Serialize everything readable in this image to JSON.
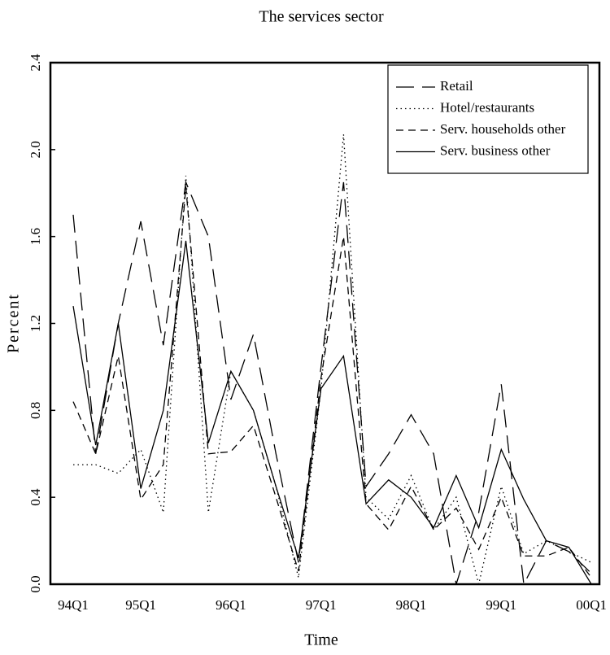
{
  "chart_data": {
    "type": "line",
    "title": "The services sector",
    "x_label": "Time",
    "y_label": "Percent",
    "categories": [
      "94Q1",
      null,
      null,
      "95Q1",
      null,
      null,
      null,
      "96Q1",
      null,
      null,
      null,
      "97Q1",
      null,
      null,
      null,
      "98Q1",
      null,
      null,
      null,
      "99Q1",
      null,
      null,
      null,
      "00Q1"
    ],
    "series": [
      {
        "name": "Retail",
        "color": "#000000",
        "style": "long-dash",
        "values": [
          1.7,
          0.6,
          1.2,
          1.67,
          1.1,
          1.85,
          1.6,
          0.85,
          1.15,
          0.6,
          0.1,
          1.0,
          1.85,
          0.45,
          0.6,
          0.78,
          0.6,
          0.0,
          0.33,
          0.92,
          0.0,
          0.2,
          0.15,
          0.05
        ]
      },
      {
        "name": "Hotel/restaurants",
        "color": "#000000",
        "style": "dotted",
        "values": [
          0.55,
          0.55,
          0.51,
          0.62,
          0.33,
          1.88,
          0.33,
          0.98,
          0.8,
          0.45,
          0.03,
          0.9,
          2.07,
          0.4,
          0.3,
          0.5,
          0.25,
          0.4,
          0.0,
          0.45,
          0.14,
          0.2,
          0.15,
          0.1
        ]
      },
      {
        "name": "Serv. households other",
        "color": "#000000",
        "style": "dashed",
        "values": [
          0.84,
          0.6,
          1.05,
          0.39,
          0.55,
          1.83,
          0.6,
          0.61,
          0.73,
          0.4,
          0.06,
          0.95,
          1.6,
          0.37,
          0.25,
          0.45,
          0.25,
          0.35,
          0.16,
          0.4,
          0.13,
          0.13,
          0.17,
          0.03
        ]
      },
      {
        "name": "Serv. business other",
        "color": "#000000",
        "style": "solid",
        "values": [
          1.28,
          0.64,
          1.2,
          0.44,
          0.8,
          1.58,
          0.65,
          0.98,
          0.8,
          0.45,
          0.12,
          0.9,
          1.05,
          0.37,
          0.48,
          0.4,
          0.26,
          0.5,
          0.26,
          0.62,
          0.39,
          0.2,
          0.17,
          0.0
        ]
      }
    ],
    "ylim": [
      0,
      2.4
    ],
    "yticks": [
      {
        "value": 0,
        "label": "0.0"
      },
      0.4,
      0.8,
      1.2,
      1.6,
      {
        "value": 2,
        "label": "2.0"
      },
      2.4
    ],
    "legend": "top-right"
  }
}
